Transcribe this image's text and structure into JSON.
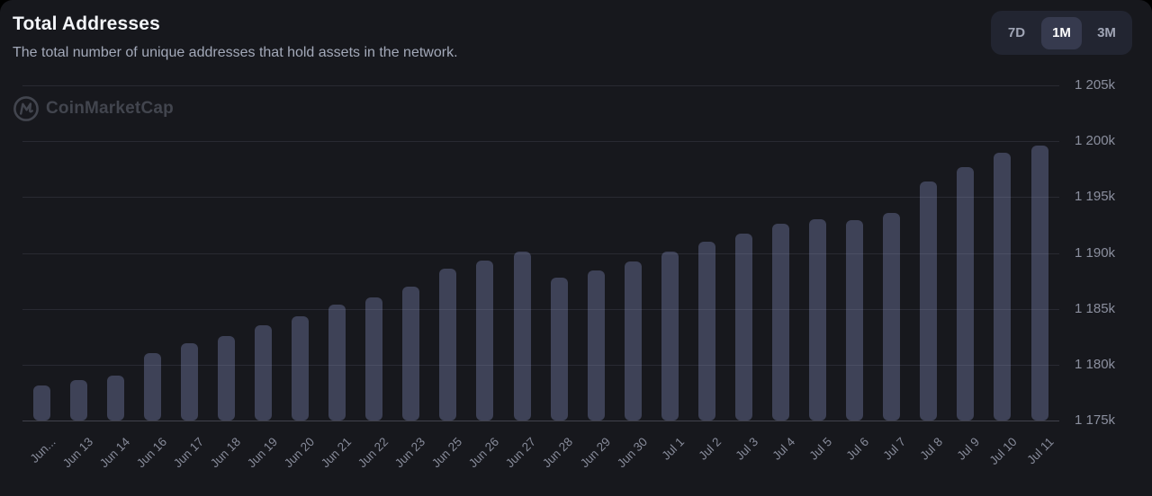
{
  "header": {
    "title": "Total Addresses",
    "subtitle": "The total number of unique addresses that hold assets in the network."
  },
  "range": {
    "options": [
      "7D",
      "1M",
      "3M"
    ],
    "selected": "1M"
  },
  "brand": {
    "watermark": "CoinMarketCap",
    "logo_icon": "coinmarketcap-logo"
  },
  "colors": {
    "card_background": "#17181d",
    "bar": "#3e4257",
    "selected_button_background": "#363a4e",
    "button_group_background": "#222531",
    "axis_text": "#8b8f9e"
  },
  "chart_data": {
    "type": "bar",
    "title": "Total Addresses",
    "xlabel": "",
    "ylabel": "",
    "unit": "thousand addresses (k)",
    "grid": "horizontal",
    "legend": "none",
    "ylim": [
      1175,
      1205
    ],
    "y_ticks": [
      "1 205k",
      "1 200k",
      "1 195k",
      "1 190k",
      "1 185k",
      "1 180k",
      "1 175k"
    ],
    "categories": [
      "Jun...",
      "Jun 13",
      "Jun 14",
      "Jun 16",
      "Jun 17",
      "Jun 18",
      "Jun 19",
      "Jun 20",
      "Jun 21",
      "Jun 22",
      "Jun 23",
      "Jun 25",
      "Jun 26",
      "Jun 27",
      "Jun 28",
      "Jun 29",
      "Jun 30",
      "Jul 1",
      "Jul 2",
      "Jul 3",
      "Jul 4",
      "Jul 5",
      "Jul 6",
      "Jul 7",
      "Jul 8",
      "Jul 9",
      "Jul 10",
      "Jul 11"
    ],
    "values": [
      1178.1,
      1178.6,
      1179.0,
      1181.0,
      1181.9,
      1182.6,
      1183.5,
      1184.3,
      1185.4,
      1186.0,
      1187.0,
      1188.6,
      1189.3,
      1190.1,
      1187.8,
      1188.4,
      1189.2,
      1190.1,
      1191.0,
      1191.7,
      1192.6,
      1193.0,
      1192.9,
      1193.6,
      1196.4,
      1197.7,
      1199.0,
      1199.6
    ]
  }
}
